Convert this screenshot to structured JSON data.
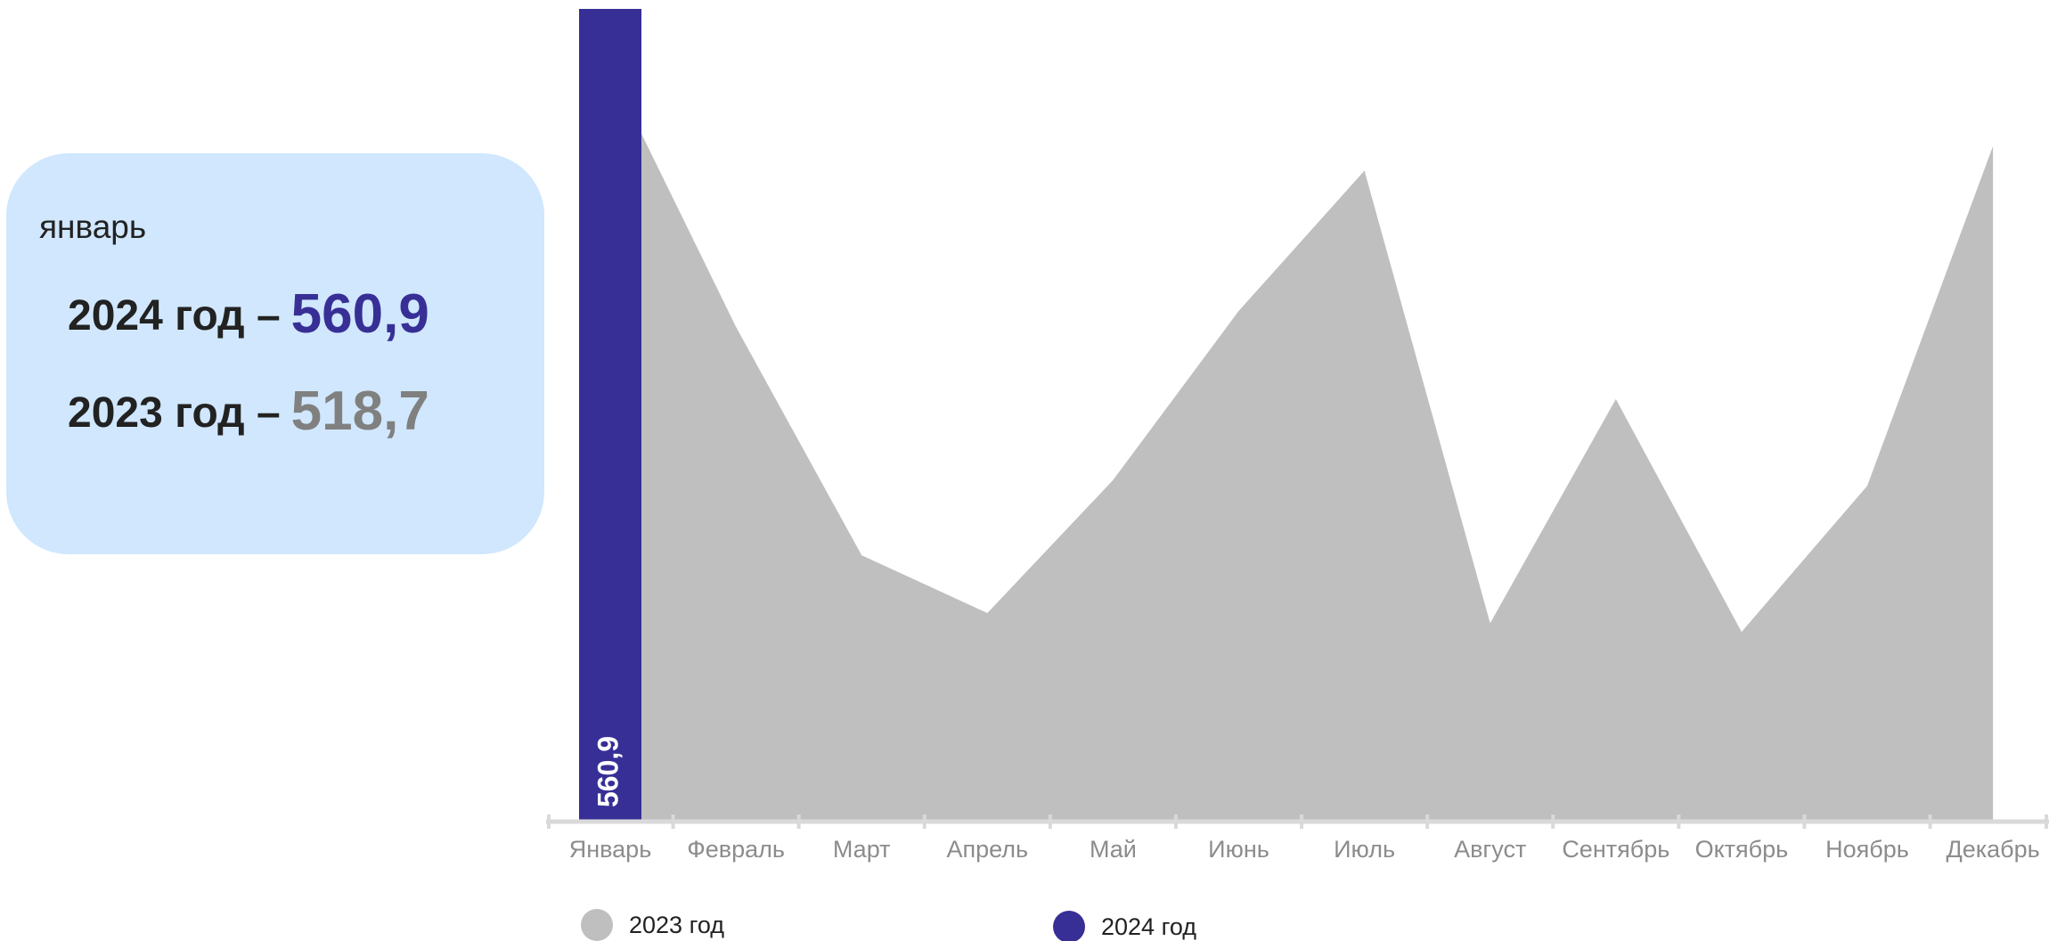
{
  "chart_data": {
    "type": "bar-area",
    "categories": [
      "Январь",
      "Февраль",
      "Март",
      "Апрель",
      "Май",
      "Июнь",
      "Июль",
      "Август",
      "Сентябрь",
      "Октябрь",
      "Ноябрь",
      "Декабрь"
    ],
    "series": [
      {
        "name": "2023 год",
        "color": "#bfbfbf",
        "kind": "area",
        "values": [
          518.7,
          341,
          183,
          143,
          235,
          352,
          449,
          136,
          291,
          130,
          231,
          466
        ]
      },
      {
        "name": "2024 год",
        "color": "#372f96",
        "kind": "bar",
        "values": [
          560.9,
          null,
          null,
          null,
          null,
          null,
          null,
          null,
          null,
          null,
          null,
          null
        ],
        "value_labels": [
          "560,9",
          null,
          null,
          null,
          null,
          null,
          null,
          null,
          null,
          null,
          null,
          null
        ]
      }
    ]
  },
  "tooltip": {
    "month": "январь",
    "rows": [
      {
        "label": "2024 год –",
        "value": "560,9",
        "color": "#372f96"
      },
      {
        "label": "2023 год –",
        "value": "518,7",
        "color": "#808080"
      }
    ]
  }
}
